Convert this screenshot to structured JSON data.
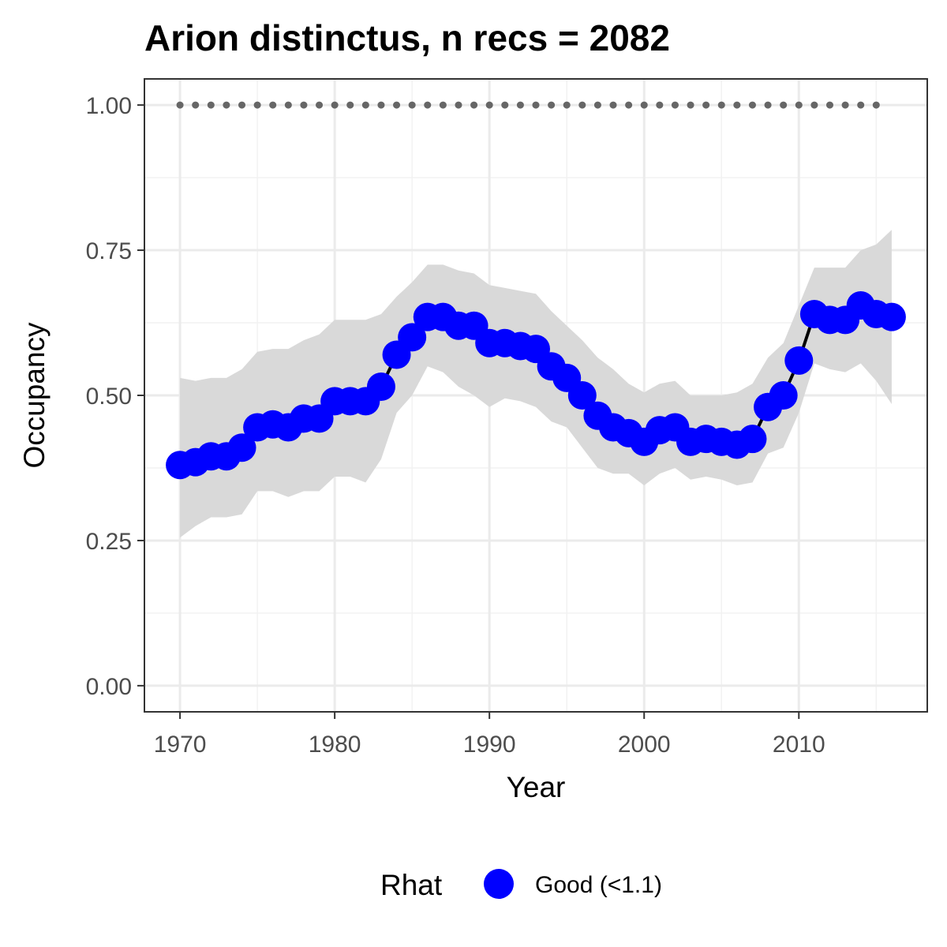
{
  "chart_data": {
    "type": "line",
    "title": "Arion distinctus, n recs = 2082",
    "xlabel": "Year",
    "ylabel": "Occupancy",
    "xlim": [
      1968.2,
      1917.8
    ],
    "ylim": [
      -0.045,
      1.045
    ],
    "x_ticks": [
      "1970",
      "1980",
      "1990",
      "2000",
      "2010"
    ],
    "y_ticks": [
      "0.00",
      "0.25",
      "0.50",
      "0.75",
      "1.00"
    ],
    "grid": true,
    "legend_position": "bottom",
    "legend": {
      "title": "Rhat",
      "entries": [
        {
          "label": "Good (<1.1)",
          "color": "#0000ff"
        }
      ]
    },
    "colors": {
      "points": "#0000ff",
      "line": "#000000",
      "ribbon": "#d9d9d9",
      "reference": "#666666"
    },
    "years": [
      1970,
      1971,
      1972,
      1973,
      1974,
      1975,
      1976,
      1977,
      1978,
      1979,
      1980,
      1981,
      1982,
      1983,
      1984,
      1985,
      1986,
      1987,
      1988,
      1989,
      1990,
      1991,
      1992,
      1993,
      1994,
      1995,
      1996,
      1997,
      1998,
      1999,
      2000,
      2001,
      2002,
      2003,
      2004,
      2005,
      2006,
      2007,
      2008,
      2009,
      2010,
      2011,
      2012,
      2013,
      2014,
      2015,
      2016
    ],
    "occupancy": [
      0.38,
      0.385,
      0.395,
      0.395,
      0.41,
      0.445,
      0.45,
      0.445,
      0.46,
      0.46,
      0.49,
      0.49,
      0.49,
      0.515,
      0.57,
      0.6,
      0.635,
      0.635,
      0.62,
      0.62,
      0.59,
      0.59,
      0.585,
      0.58,
      0.55,
      0.53,
      0.5,
      0.465,
      0.445,
      0.435,
      0.42,
      0.44,
      0.445,
      0.42,
      0.425,
      0.42,
      0.415,
      0.425,
      0.48,
      0.5,
      0.56,
      0.64,
      0.63,
      0.63,
      0.655,
      0.64,
      0.635
    ],
    "lower": [
      0.255,
      0.275,
      0.29,
      0.29,
      0.295,
      0.335,
      0.335,
      0.325,
      0.335,
      0.335,
      0.36,
      0.36,
      0.35,
      0.39,
      0.47,
      0.5,
      0.55,
      0.54,
      0.515,
      0.5,
      0.48,
      0.495,
      0.49,
      0.48,
      0.455,
      0.445,
      0.41,
      0.375,
      0.365,
      0.365,
      0.345,
      0.365,
      0.375,
      0.355,
      0.36,
      0.355,
      0.345,
      0.35,
      0.4,
      0.41,
      0.47,
      0.555,
      0.545,
      0.54,
      0.555,
      0.525,
      0.485
    ],
    "upper": [
      0.53,
      0.525,
      0.53,
      0.53,
      0.545,
      0.575,
      0.58,
      0.58,
      0.595,
      0.605,
      0.63,
      0.63,
      0.63,
      0.64,
      0.67,
      0.695,
      0.725,
      0.725,
      0.715,
      0.71,
      0.69,
      0.685,
      0.68,
      0.675,
      0.645,
      0.62,
      0.595,
      0.565,
      0.545,
      0.52,
      0.505,
      0.52,
      0.525,
      0.5,
      0.5,
      0.5,
      0.505,
      0.52,
      0.565,
      0.59,
      0.655,
      0.72,
      0.72,
      0.72,
      0.75,
      0.76,
      0.785
    ],
    "reference_line": {
      "y": 1.0,
      "x_from": 1970,
      "x_to": 2015,
      "style": "dotted"
    }
  }
}
